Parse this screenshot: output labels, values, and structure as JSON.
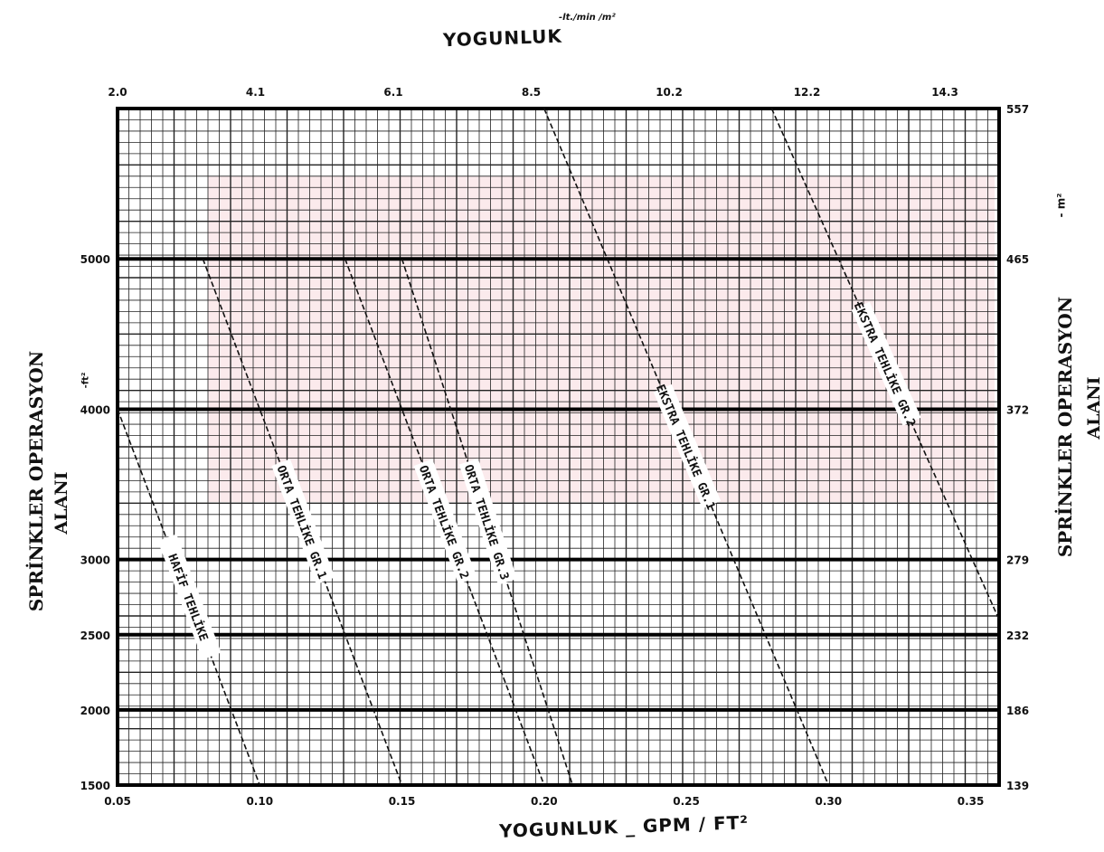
{
  "chart_data": {
    "type": "line",
    "title": "",
    "top_axis": {
      "label": "YOGUNLUK",
      "unit": "-lt./min /m²",
      "ticks": [
        "2.0",
        "4.1",
        "6.1",
        "8.5",
        "10.2",
        "12.2",
        "14.3"
      ]
    },
    "bottom_axis": {
      "label": "YOGUNLUK _ GPM / FT²",
      "ticks": [
        "0.05",
        "0.10",
        "0.15",
        "0.20",
        "0.25",
        "0.30",
        "0.35"
      ],
      "range": [
        0.05,
        0.36
      ]
    },
    "left_axis": {
      "label": "SPRİNKLER OPERASYON",
      "label_line2": "ALANI",
      "unit": "-ft²",
      "ticks": [
        "1500",
        "2000",
        "2500",
        "3000",
        "4000",
        "5000"
      ],
      "tick_values": [
        1500,
        2000,
        2500,
        3000,
        4000,
        5000
      ],
      "range": [
        1500,
        6000
      ]
    },
    "right_axis": {
      "label": "SPRİNKLER OPERASYON",
      "label_line2": "ALANI",
      "unit": "- m²",
      "ticks": [
        "139",
        "186",
        "232",
        "279",
        "372",
        "465",
        "557"
      ]
    },
    "grid": true,
    "series": [
      {
        "name": "HAFİF TEHLİKE",
        "label": "HAFİF TEHLİKE",
        "x": [
          0.05,
          0.1
        ],
        "y": [
          4000,
          1500
        ]
      },
      {
        "name": "ORTA TEHLİKE GR.1",
        "label": "ORTA TEHLİKE GR.1",
        "x": [
          0.08,
          0.15
        ],
        "y": [
          5000,
          1500
        ]
      },
      {
        "name": "ORTA TEHLİKE GR.2",
        "label": "ORTA TEHLİKE GR.2",
        "x": [
          0.13,
          0.2
        ],
        "y": [
          5000,
          1500
        ]
      },
      {
        "name": "ORTA TEHLİKE GR.3",
        "label": "ORTA TEHLİKE GR.3",
        "x": [
          0.15,
          0.21
        ],
        "y": [
          5000,
          1500
        ]
      },
      {
        "name": "EKSTRA TEHLİKE GR.1",
        "label": "EKSTRA TEHLİKE GR.1",
        "x": [
          0.2,
          0.3
        ],
        "y": [
          6000,
          1500
        ]
      },
      {
        "name": "EKSTRA TEHLİKE GR.2",
        "label": "EKSTRA TEHLİKE GR.2",
        "x": [
          0.28,
          0.36
        ],
        "y": [
          6000,
          2600
        ]
      }
    ]
  }
}
